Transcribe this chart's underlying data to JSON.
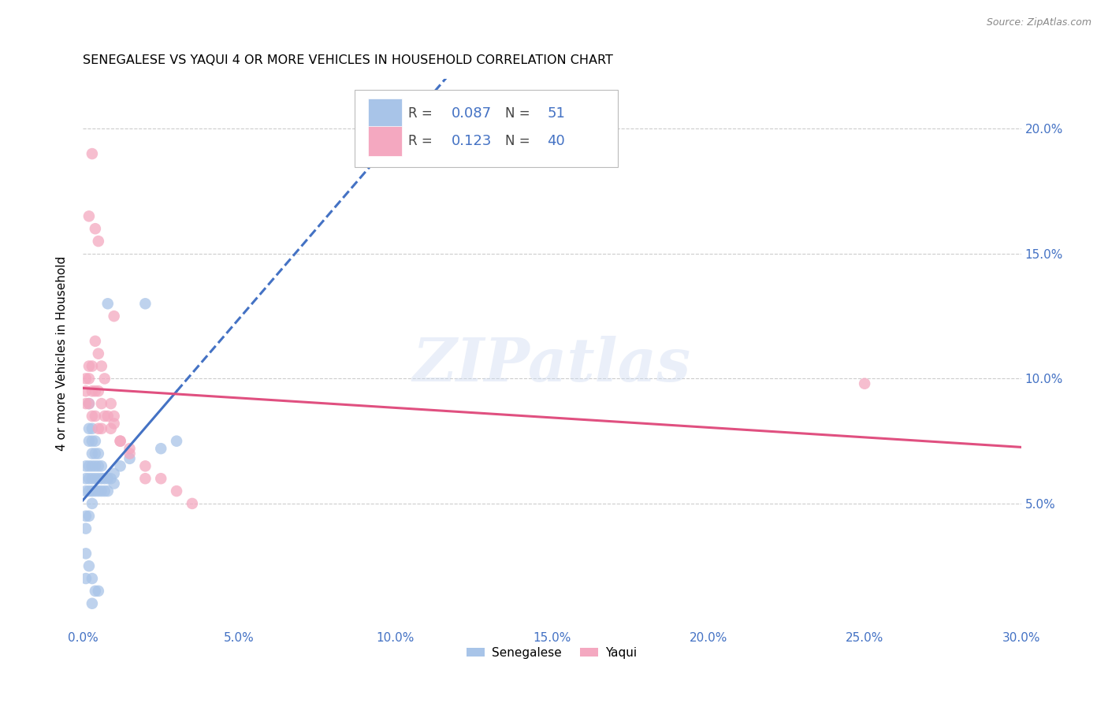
{
  "title": "SENEGALESE VS YAQUI 4 OR MORE VEHICLES IN HOUSEHOLD CORRELATION CHART",
  "source": "Source: ZipAtlas.com",
  "ylabel": "4 or more Vehicles in Household",
  "xlim": [
    0.0,
    0.3
  ],
  "ylim": [
    0.0,
    0.22
  ],
  "xtick_vals": [
    0.0,
    0.05,
    0.1,
    0.15,
    0.2,
    0.25,
    0.3
  ],
  "xtick_labels": [
    "0.0%",
    "5.0%",
    "10.0%",
    "15.0%",
    "20.0%",
    "25.0%",
    "30.0%"
  ],
  "ytick_vals": [
    0.05,
    0.1,
    0.15,
    0.2
  ],
  "ytick_labels": [
    "5.0%",
    "10.0%",
    "15.0%",
    "20.0%"
  ],
  "legend_r": [
    0.087,
    0.123
  ],
  "legend_n": [
    51,
    40
  ],
  "senegalese_color": "#a8c4e8",
  "yaqui_color": "#f4a8c0",
  "senegalese_line_color": "#4472c4",
  "yaqui_line_color": "#e05080",
  "watermark": "ZIPatlas",
  "senegalese_x": [
    0.001,
    0.001,
    0.001,
    0.002,
    0.002,
    0.002,
    0.002,
    0.002,
    0.002,
    0.003,
    0.003,
    0.003,
    0.003,
    0.003,
    0.003,
    0.003,
    0.004,
    0.004,
    0.004,
    0.004,
    0.004,
    0.005,
    0.005,
    0.005,
    0.005,
    0.006,
    0.006,
    0.006,
    0.007,
    0.007,
    0.008,
    0.008,
    0.009,
    0.01,
    0.01,
    0.012,
    0.015,
    0.02,
    0.025,
    0.03,
    0.008,
    0.003,
    0.004,
    0.005,
    0.001,
    0.001,
    0.002,
    0.001,
    0.002,
    0.001,
    0.003
  ],
  "senegalese_y": [
    0.065,
    0.06,
    0.055,
    0.09,
    0.08,
    0.075,
    0.065,
    0.06,
    0.055,
    0.08,
    0.075,
    0.07,
    0.065,
    0.06,
    0.055,
    0.05,
    0.075,
    0.07,
    0.065,
    0.06,
    0.055,
    0.07,
    0.065,
    0.06,
    0.055,
    0.065,
    0.06,
    0.055,
    0.06,
    0.055,
    0.06,
    0.055,
    0.06,
    0.062,
    0.058,
    0.065,
    0.068,
    0.13,
    0.072,
    0.075,
    0.13,
    0.01,
    0.015,
    0.015,
    0.045,
    0.04,
    0.045,
    0.03,
    0.025,
    0.02,
    0.02
  ],
  "yaqui_x": [
    0.001,
    0.001,
    0.001,
    0.002,
    0.002,
    0.002,
    0.003,
    0.003,
    0.003,
    0.004,
    0.004,
    0.005,
    0.005,
    0.006,
    0.006,
    0.007,
    0.008,
    0.009,
    0.01,
    0.012,
    0.015,
    0.02,
    0.025,
    0.03,
    0.035,
    0.004,
    0.005,
    0.006,
    0.007,
    0.009,
    0.01,
    0.012,
    0.015,
    0.02,
    0.003,
    0.004,
    0.25,
    0.01,
    0.005,
    0.002
  ],
  "yaqui_y": [
    0.1,
    0.095,
    0.09,
    0.105,
    0.1,
    0.09,
    0.105,
    0.095,
    0.085,
    0.095,
    0.085,
    0.095,
    0.08,
    0.09,
    0.08,
    0.085,
    0.085,
    0.08,
    0.082,
    0.075,
    0.072,
    0.065,
    0.06,
    0.055,
    0.05,
    0.115,
    0.11,
    0.105,
    0.1,
    0.09,
    0.085,
    0.075,
    0.07,
    0.06,
    0.19,
    0.16,
    0.098,
    0.125,
    0.155,
    0.165
  ]
}
